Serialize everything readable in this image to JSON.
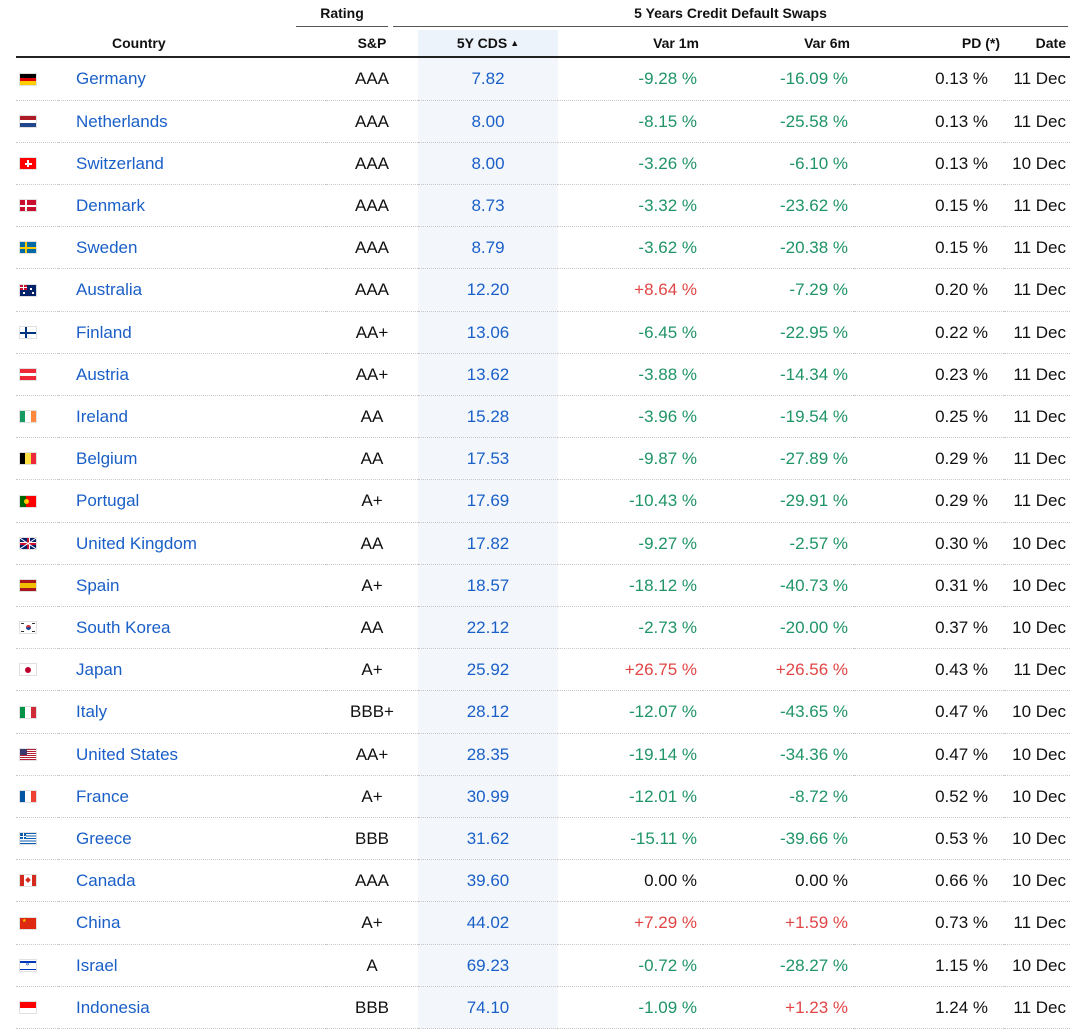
{
  "header": {
    "group_rating": "Rating",
    "group_cds": "5 Years Credit Default Swaps",
    "col_country": "Country",
    "col_sp": "S&P",
    "col_cds": "5Y CDS",
    "col_var1m": "Var 1m",
    "col_var6m": "Var 6m",
    "col_pd": "PD (*)",
    "col_date": "Date",
    "sort_indicator": "▲"
  },
  "colors": {
    "link": "#1a5fc8",
    "negative": "#1f9466",
    "positive": "#e24545",
    "sorted_column_bg": "#f3f7fb"
  },
  "rows": [
    {
      "flag": "germany-flag-icon",
      "country": "Germany",
      "rating": "AAA",
      "cds": "7.82",
      "var1m": "-9.28 %",
      "var6m": "-16.09 %",
      "pd": "0.13 %",
      "date": "11 Dec"
    },
    {
      "flag": "netherlands-flag-icon",
      "country": "Netherlands",
      "rating": "AAA",
      "cds": "8.00",
      "var1m": "-8.15 %",
      "var6m": "-25.58 %",
      "pd": "0.13 %",
      "date": "11 Dec"
    },
    {
      "flag": "switzerland-flag-icon",
      "country": "Switzerland",
      "rating": "AAA",
      "cds": "8.00",
      "var1m": "-3.26 %",
      "var6m": "-6.10 %",
      "pd": "0.13 %",
      "date": "10 Dec"
    },
    {
      "flag": "denmark-flag-icon",
      "country": "Denmark",
      "rating": "AAA",
      "cds": "8.73",
      "var1m": "-3.32 %",
      "var6m": "-23.62 %",
      "pd": "0.15 %",
      "date": "11 Dec"
    },
    {
      "flag": "sweden-flag-icon",
      "country": "Sweden",
      "rating": "AAA",
      "cds": "8.79",
      "var1m": "-3.62 %",
      "var6m": "-20.38 %",
      "pd": "0.15 %",
      "date": "11 Dec"
    },
    {
      "flag": "australia-flag-icon",
      "country": "Australia",
      "rating": "AAA",
      "cds": "12.20",
      "var1m": "+8.64 %",
      "var6m": "-7.29 %",
      "pd": "0.20 %",
      "date": "11 Dec"
    },
    {
      "flag": "finland-flag-icon",
      "country": "Finland",
      "rating": "AA+",
      "cds": "13.06",
      "var1m": "-6.45 %",
      "var6m": "-22.95 %",
      "pd": "0.22 %",
      "date": "11 Dec"
    },
    {
      "flag": "austria-flag-icon",
      "country": "Austria",
      "rating": "AA+",
      "cds": "13.62",
      "var1m": "-3.88 %",
      "var6m": "-14.34 %",
      "pd": "0.23 %",
      "date": "11 Dec"
    },
    {
      "flag": "ireland-flag-icon",
      "country": "Ireland",
      "rating": "AA",
      "cds": "15.28",
      "var1m": "-3.96 %",
      "var6m": "-19.54 %",
      "pd": "0.25 %",
      "date": "11 Dec"
    },
    {
      "flag": "belgium-flag-icon",
      "country": "Belgium",
      "rating": "AA",
      "cds": "17.53",
      "var1m": "-9.87 %",
      "var6m": "-27.89 %",
      "pd": "0.29 %",
      "date": "11 Dec"
    },
    {
      "flag": "portugal-flag-icon",
      "country": "Portugal",
      "rating": "A+",
      "cds": "17.69",
      "var1m": "-10.43 %",
      "var6m": "-29.91 %",
      "pd": "0.29 %",
      "date": "11 Dec"
    },
    {
      "flag": "united-kingdom-flag-icon",
      "country": "United Kingdom",
      "rating": "AA",
      "cds": "17.82",
      "var1m": "-9.27 %",
      "var6m": "-2.57 %",
      "pd": "0.30 %",
      "date": "10 Dec"
    },
    {
      "flag": "spain-flag-icon",
      "country": "Spain",
      "rating": "A+",
      "cds": "18.57",
      "var1m": "-18.12 %",
      "var6m": "-40.73 %",
      "pd": "0.31 %",
      "date": "10 Dec"
    },
    {
      "flag": "south-korea-flag-icon",
      "country": "South Korea",
      "rating": "AA",
      "cds": "22.12",
      "var1m": "-2.73 %",
      "var6m": "-20.00 %",
      "pd": "0.37 %",
      "date": "10 Dec"
    },
    {
      "flag": "japan-flag-icon",
      "country": "Japan",
      "rating": "A+",
      "cds": "25.92",
      "var1m": "+26.75 %",
      "var6m": "+26.56 %",
      "pd": "0.43 %",
      "date": "11 Dec"
    },
    {
      "flag": "italy-flag-icon",
      "country": "Italy",
      "rating": "BBB+",
      "cds": "28.12",
      "var1m": "-12.07 %",
      "var6m": "-43.65 %",
      "pd": "0.47 %",
      "date": "10 Dec"
    },
    {
      "flag": "united-states-flag-icon",
      "country": "United States",
      "rating": "AA+",
      "cds": "28.35",
      "var1m": "-19.14 %",
      "var6m": "-34.36 %",
      "pd": "0.47 %",
      "date": "10 Dec"
    },
    {
      "flag": "france-flag-icon",
      "country": "France",
      "rating": "A+",
      "cds": "30.99",
      "var1m": "-12.01 %",
      "var6m": "-8.72 %",
      "pd": "0.52 %",
      "date": "10 Dec"
    },
    {
      "flag": "greece-flag-icon",
      "country": "Greece",
      "rating": "BBB",
      "cds": "31.62",
      "var1m": "-15.11 %",
      "var6m": "-39.66 %",
      "pd": "0.53 %",
      "date": "10 Dec"
    },
    {
      "flag": "canada-flag-icon",
      "country": "Canada",
      "rating": "AAA",
      "cds": "39.60",
      "var1m": "0.00 %",
      "var6m": "0.00 %",
      "pd": "0.66 %",
      "date": "10 Dec"
    },
    {
      "flag": "china-flag-icon",
      "country": "China",
      "rating": "A+",
      "cds": "44.02",
      "var1m": "+7.29 %",
      "var6m": "+1.59 %",
      "pd": "0.73 %",
      "date": "11 Dec"
    },
    {
      "flag": "israel-flag-icon",
      "country": "Israel",
      "rating": "A",
      "cds": "69.23",
      "var1m": "-0.72 %",
      "var6m": "-28.27 %",
      "pd": "1.15 %",
      "date": "10 Dec"
    },
    {
      "flag": "indonesia-flag-icon",
      "country": "Indonesia",
      "rating": "BBB",
      "cds": "74.10",
      "var1m": "-1.09 %",
      "var6m": "+1.23 %",
      "pd": "1.24 %",
      "date": "11 Dec"
    }
  ]
}
